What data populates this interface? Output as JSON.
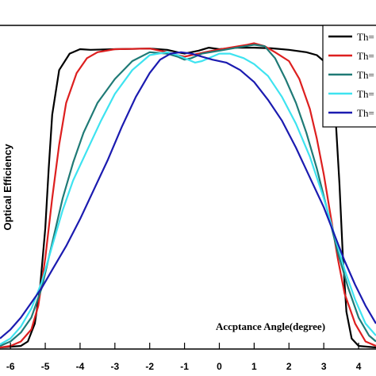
{
  "chart_data": {
    "type": "line",
    "title": "",
    "xlabel": "Accptance Angle(degree)",
    "ylabel": "Optical Efficiency",
    "xlim": [
      -6.3,
      4.5
    ],
    "ylim": [
      0,
      1.0
    ],
    "xticks": [
      "-6",
      "-5",
      "-4",
      "-3",
      "-2",
      "-1",
      "0",
      "1",
      "2",
      "3",
      "4"
    ],
    "grid": false,
    "legend_position": "top-right",
    "series": [
      {
        "name": "Th=",
        "color": "#000000",
        "points": [
          [
            -6.3,
            0
          ],
          [
            -5.7,
            0.005
          ],
          [
            -5.5,
            0.02
          ],
          [
            -5.3,
            0.08
          ],
          [
            -5.15,
            0.2
          ],
          [
            -5.0,
            0.4
          ],
          [
            -4.9,
            0.6
          ],
          [
            -4.8,
            0.78
          ],
          [
            -4.6,
            0.93
          ],
          [
            -4.3,
            0.985
          ],
          [
            -4.0,
            1.0
          ],
          [
            -3.7,
            0.998
          ],
          [
            -3.0,
            1.0
          ],
          [
            -2.0,
            1.002
          ],
          [
            -1.5,
            0.998
          ],
          [
            -1.2,
            0.99
          ],
          [
            -1.0,
            0.985
          ],
          [
            -0.6,
            0.995
          ],
          [
            -0.3,
            1.005
          ],
          [
            0,
            1.0
          ],
          [
            0.5,
            1.005
          ],
          [
            1.0,
            1.005
          ],
          [
            1.5,
            1.003
          ],
          [
            2.0,
            0.998
          ],
          [
            2.5,
            0.99
          ],
          [
            2.8,
            0.98
          ],
          [
            3.0,
            0.96
          ],
          [
            3.2,
            0.9
          ],
          [
            3.35,
            0.75
          ],
          [
            3.45,
            0.55
          ],
          [
            3.55,
            0.3
          ],
          [
            3.65,
            0.12
          ],
          [
            3.8,
            0.03
          ],
          [
            4.0,
            0.005
          ],
          [
            4.5,
            0
          ]
        ]
      },
      {
        "name": "Th=",
        "color": "#dd1f1f",
        "points": [
          [
            -6.3,
            0
          ],
          [
            -6.0,
            0.005
          ],
          [
            -5.7,
            0.02
          ],
          [
            -5.4,
            0.06
          ],
          [
            -5.2,
            0.14
          ],
          [
            -5.0,
            0.3
          ],
          [
            -4.8,
            0.5
          ],
          [
            -4.6,
            0.68
          ],
          [
            -4.4,
            0.82
          ],
          [
            -4.1,
            0.92
          ],
          [
            -3.8,
            0.97
          ],
          [
            -3.5,
            0.99
          ],
          [
            -3.0,
            1.0
          ],
          [
            -2.0,
            1.002
          ],
          [
            -1.5,
            0.99
          ],
          [
            -1.2,
            0.98
          ],
          [
            -1.0,
            0.975
          ],
          [
            -0.6,
            0.985
          ],
          [
            -0.2,
            0.995
          ],
          [
            0.3,
            1.005
          ],
          [
            0.8,
            1.015
          ],
          [
            1.0,
            1.02
          ],
          [
            1.3,
            1.01
          ],
          [
            1.6,
            0.99
          ],
          [
            2.0,
            0.96
          ],
          [
            2.3,
            0.9
          ],
          [
            2.6,
            0.8
          ],
          [
            2.8,
            0.7
          ],
          [
            3.0,
            0.58
          ],
          [
            3.2,
            0.44
          ],
          [
            3.4,
            0.3
          ],
          [
            3.6,
            0.18
          ],
          [
            3.9,
            0.08
          ],
          [
            4.2,
            0.02
          ],
          [
            4.5,
            0.005
          ]
        ]
      },
      {
        "name": "Th=",
        "color": "#1f7a76",
        "points": [
          [
            -6.3,
            0.005
          ],
          [
            -6.0,
            0.02
          ],
          [
            -5.7,
            0.05
          ],
          [
            -5.4,
            0.1
          ],
          [
            -5.1,
            0.2
          ],
          [
            -4.8,
            0.35
          ],
          [
            -4.5,
            0.5
          ],
          [
            -4.2,
            0.62
          ],
          [
            -3.9,
            0.72
          ],
          [
            -3.5,
            0.82
          ],
          [
            -3.0,
            0.9
          ],
          [
            -2.5,
            0.96
          ],
          [
            -2.0,
            0.99
          ],
          [
            -1.5,
            0.985
          ],
          [
            -1.2,
            0.975
          ],
          [
            -1.0,
            0.965
          ],
          [
            -0.8,
            0.97
          ],
          [
            -0.5,
            0.985
          ],
          [
            0,
            0.995
          ],
          [
            0.5,
            1.005
          ],
          [
            1.0,
            1.015
          ],
          [
            1.3,
            1.01
          ],
          [
            1.6,
            0.97
          ],
          [
            1.9,
            0.9
          ],
          [
            2.2,
            0.82
          ],
          [
            2.5,
            0.72
          ],
          [
            2.8,
            0.6
          ],
          [
            3.1,
            0.46
          ],
          [
            3.4,
            0.32
          ],
          [
            3.7,
            0.2
          ],
          [
            4.0,
            0.1
          ],
          [
            4.3,
            0.04
          ],
          [
            4.5,
            0.02
          ]
        ]
      },
      {
        "name": "Th=",
        "color": "#3ee3f0",
        "points": [
          [
            -6.3,
            0.01
          ],
          [
            -6.0,
            0.03
          ],
          [
            -5.7,
            0.07
          ],
          [
            -5.4,
            0.13
          ],
          [
            -5.1,
            0.22
          ],
          [
            -4.8,
            0.34
          ],
          [
            -4.5,
            0.46
          ],
          [
            -4.2,
            0.56
          ],
          [
            -3.8,
            0.66
          ],
          [
            -3.4,
            0.76
          ],
          [
            -3.0,
            0.85
          ],
          [
            -2.5,
            0.93
          ],
          [
            -2.0,
            0.98
          ],
          [
            -1.5,
            0.99
          ],
          [
            -1.2,
            0.98
          ],
          [
            -1.0,
            0.97
          ],
          [
            -0.7,
            0.955
          ],
          [
            -0.5,
            0.96
          ],
          [
            -0.2,
            0.975
          ],
          [
            0,
            0.985
          ],
          [
            0.3,
            0.985
          ],
          [
            0.7,
            0.97
          ],
          [
            1.0,
            0.95
          ],
          [
            1.4,
            0.91
          ],
          [
            1.8,
            0.84
          ],
          [
            2.2,
            0.75
          ],
          [
            2.6,
            0.64
          ],
          [
            3.0,
            0.5
          ],
          [
            3.3,
            0.38
          ],
          [
            3.6,
            0.26
          ],
          [
            3.9,
            0.16
          ],
          [
            4.2,
            0.08
          ],
          [
            4.5,
            0.04
          ]
        ]
      },
      {
        "name": "Th=",
        "color": "#1b1bb0",
        "points": [
          [
            -6.3,
            0.03
          ],
          [
            -6.0,
            0.06
          ],
          [
            -5.7,
            0.1
          ],
          [
            -5.4,
            0.15
          ],
          [
            -5.1,
            0.2
          ],
          [
            -4.8,
            0.26
          ],
          [
            -4.4,
            0.34
          ],
          [
            -4.0,
            0.43
          ],
          [
            -3.6,
            0.53
          ],
          [
            -3.2,
            0.63
          ],
          [
            -2.8,
            0.74
          ],
          [
            -2.4,
            0.84
          ],
          [
            -2.0,
            0.92
          ],
          [
            -1.7,
            0.965
          ],
          [
            -1.4,
            0.985
          ],
          [
            -1.1,
            0.99
          ],
          [
            -0.8,
            0.985
          ],
          [
            -0.5,
            0.975
          ],
          [
            -0.2,
            0.965
          ],
          [
            0.2,
            0.955
          ],
          [
            0.6,
            0.93
          ],
          [
            1.0,
            0.89
          ],
          [
            1.4,
            0.83
          ],
          [
            1.8,
            0.76
          ],
          [
            2.2,
            0.67
          ],
          [
            2.6,
            0.57
          ],
          [
            3.0,
            0.47
          ],
          [
            3.3,
            0.38
          ],
          [
            3.6,
            0.29
          ],
          [
            3.9,
            0.21
          ],
          [
            4.2,
            0.14
          ],
          [
            4.5,
            0.08
          ]
        ]
      }
    ]
  }
}
